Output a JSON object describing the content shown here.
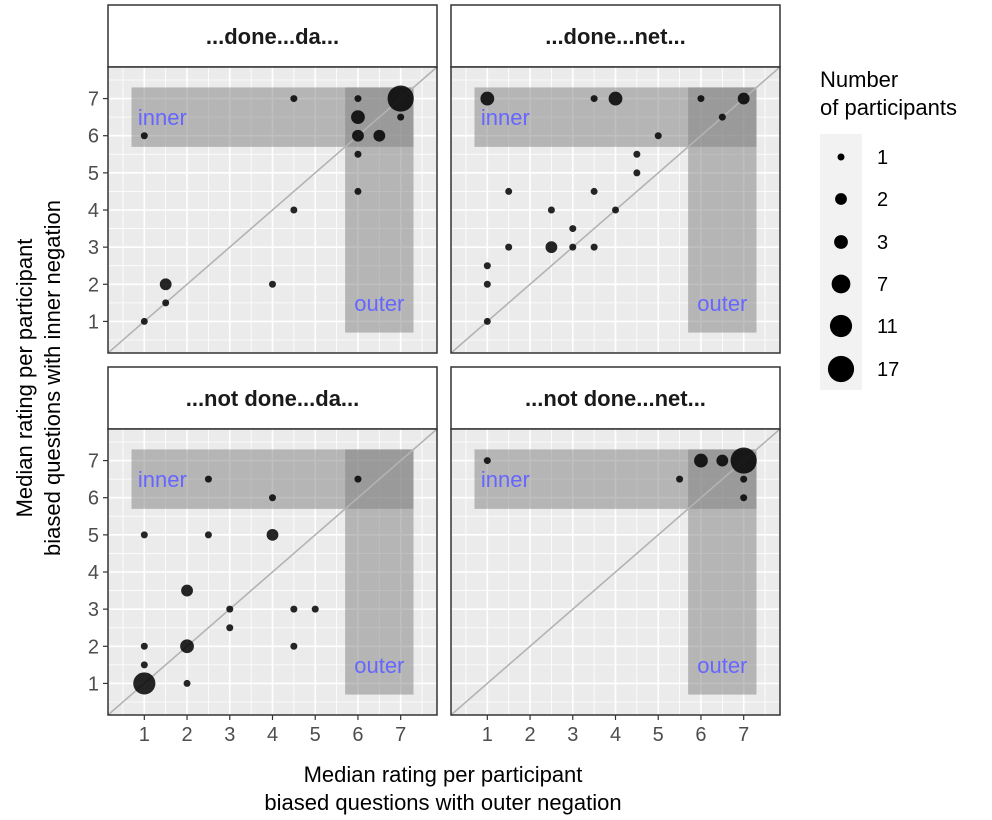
{
  "chart_data": {
    "type": "scatter",
    "xlabel_lines": [
      "Median rating per participant",
      "biased questions with outer negation"
    ],
    "ylabel_lines": [
      "Median rating per participant",
      "biased questions with inner negation"
    ],
    "xlim": [
      0.15,
      7.85
    ],
    "ylim": [
      0.15,
      7.85
    ],
    "x_ticks": [
      1,
      2,
      3,
      4,
      5,
      6,
      7
    ],
    "y_ticks": [
      1,
      2,
      3,
      4,
      5,
      6,
      7
    ],
    "grid": true,
    "diagonal_line": true,
    "colors": {
      "panel_bg": "#ebebeb",
      "grid": "#ffffff",
      "region": "#7f7f7f",
      "region_label": "#6666ff",
      "point": "#000000",
      "diagonal": "#b3b3b3",
      "strip_bg": "#ffffff"
    },
    "regions": {
      "inner": {
        "label": "inner",
        "x": [
          0.7,
          7.3
        ],
        "y": [
          5.7,
          7.3
        ]
      },
      "outer": {
        "label": "outer",
        "x": [
          5.7,
          7.3
        ],
        "y": [
          0.7,
          7.3
        ]
      }
    },
    "panels": [
      {
        "title": "...done...da...",
        "points": [
          {
            "x": 1,
            "y": 6,
            "n": 1
          },
          {
            "x": 4.5,
            "y": 7,
            "n": 1
          },
          {
            "x": 6,
            "y": 7,
            "n": 1
          },
          {
            "x": 7,
            "y": 7,
            "n": 17
          },
          {
            "x": 6,
            "y": 6.5,
            "n": 3
          },
          {
            "x": 7,
            "y": 6.5,
            "n": 1
          },
          {
            "x": 6,
            "y": 6,
            "n": 2
          },
          {
            "x": 6.5,
            "y": 6,
            "n": 2
          },
          {
            "x": 6,
            "y": 5.5,
            "n": 1
          },
          {
            "x": 6,
            "y": 4.5,
            "n": 1
          },
          {
            "x": 4.5,
            "y": 4,
            "n": 1
          },
          {
            "x": 1.5,
            "y": 2,
            "n": 2
          },
          {
            "x": 4,
            "y": 2,
            "n": 1
          },
          {
            "x": 1.5,
            "y": 1.5,
            "n": 1
          },
          {
            "x": 1,
            "y": 1,
            "n": 1
          }
        ]
      },
      {
        "title": "...done...net...",
        "points": [
          {
            "x": 1,
            "y": 7,
            "n": 3
          },
          {
            "x": 3.5,
            "y": 7,
            "n": 1
          },
          {
            "x": 4,
            "y": 7,
            "n": 3
          },
          {
            "x": 6,
            "y": 7,
            "n": 1
          },
          {
            "x": 7,
            "y": 7,
            "n": 2
          },
          {
            "x": 6.5,
            "y": 6.5,
            "n": 1
          },
          {
            "x": 5,
            "y": 6,
            "n": 1
          },
          {
            "x": 4.5,
            "y": 5.5,
            "n": 1
          },
          {
            "x": 4.5,
            "y": 5,
            "n": 1
          },
          {
            "x": 1.5,
            "y": 4.5,
            "n": 1
          },
          {
            "x": 3.5,
            "y": 4.5,
            "n": 1
          },
          {
            "x": 2.5,
            "y": 4,
            "n": 1
          },
          {
            "x": 4,
            "y": 4,
            "n": 1
          },
          {
            "x": 3,
            "y": 3.5,
            "n": 1
          },
          {
            "x": 1.5,
            "y": 3,
            "n": 1
          },
          {
            "x": 2.5,
            "y": 3,
            "n": 2
          },
          {
            "x": 3,
            "y": 3,
            "n": 1
          },
          {
            "x": 3.5,
            "y": 3,
            "n": 1
          },
          {
            "x": 1,
            "y": 2.5,
            "n": 1
          },
          {
            "x": 1,
            "y": 2,
            "n": 1
          },
          {
            "x": 1,
            "y": 1,
            "n": 1
          }
        ]
      },
      {
        "title": "...not done...da...",
        "points": [
          {
            "x": 2.5,
            "y": 6.5,
            "n": 1
          },
          {
            "x": 6,
            "y": 6.5,
            "n": 1
          },
          {
            "x": 4,
            "y": 6,
            "n": 1
          },
          {
            "x": 1,
            "y": 5,
            "n": 1
          },
          {
            "x": 2.5,
            "y": 5,
            "n": 1
          },
          {
            "x": 4,
            "y": 5,
            "n": 2
          },
          {
            "x": 2,
            "y": 3.5,
            "n": 2
          },
          {
            "x": 3,
            "y": 3,
            "n": 1
          },
          {
            "x": 4.5,
            "y": 3,
            "n": 1
          },
          {
            "x": 5,
            "y": 3,
            "n": 1
          },
          {
            "x": 3,
            "y": 2.5,
            "n": 1
          },
          {
            "x": 1,
            "y": 2,
            "n": 1
          },
          {
            "x": 2,
            "y": 2,
            "n": 3
          },
          {
            "x": 4.5,
            "y": 2,
            "n": 1
          },
          {
            "x": 1,
            "y": 1.5,
            "n": 1
          },
          {
            "x": 1,
            "y": 1,
            "n": 11
          },
          {
            "x": 2,
            "y": 1,
            "n": 1
          }
        ]
      },
      {
        "title": "...not done...net...",
        "points": [
          {
            "x": 1,
            "y": 7,
            "n": 1
          },
          {
            "x": 6,
            "y": 7,
            "n": 3
          },
          {
            "x": 6.5,
            "y": 7,
            "n": 2
          },
          {
            "x": 7,
            "y": 7,
            "n": 17
          },
          {
            "x": 5.5,
            "y": 6.5,
            "n": 1
          },
          {
            "x": 7,
            "y": 6.5,
            "n": 1
          },
          {
            "x": 7,
            "y": 6,
            "n": 1
          }
        ]
      }
    ],
    "legend": {
      "title_lines": [
        "Number",
        "of participants"
      ],
      "placement": "right",
      "entries": [
        {
          "label": "1",
          "n": 1
        },
        {
          "label": "2",
          "n": 2
        },
        {
          "label": "3",
          "n": 3
        },
        {
          "label": "7",
          "n": 7
        },
        {
          "label": "11",
          "n": 11
        },
        {
          "label": "17",
          "n": 17
        }
      ]
    }
  }
}
